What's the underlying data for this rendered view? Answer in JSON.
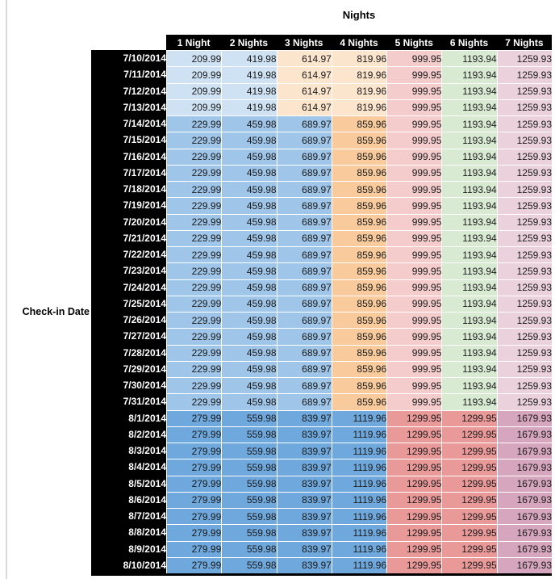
{
  "chart_data": {
    "type": "table",
    "title": "Nights",
    "row_axis_label": "Check-in Date",
    "columns": [
      "1 Night",
      "2 Nights",
      "3 Nights",
      "4 Nights",
      "5 Nights",
      "6 Nights",
      "7 Nights"
    ],
    "sections": [
      {
        "dates": [
          "7/10/2014",
          "7/11/2014",
          "7/12/2014",
          "7/13/2014"
        ],
        "row_values": [
          209.99,
          419.98,
          614.97,
          819.96,
          999.95,
          1193.94,
          1259.93
        ],
        "cell_colors": [
          "#cfe2f3",
          "#cfe2f3",
          "#fce5cd",
          "#fce5cd",
          "#f4cccc",
          "#d9ead3",
          "#ead1dc"
        ]
      },
      {
        "dates": [
          "7/14/2014",
          "7/15/2014",
          "7/16/2014",
          "7/17/2014",
          "7/18/2014",
          "7/19/2014",
          "7/20/2014",
          "7/21/2014",
          "7/22/2014",
          "7/23/2014",
          "7/24/2014",
          "7/25/2014",
          "7/26/2014",
          "7/27/2014",
          "7/28/2014",
          "7/29/2014",
          "7/30/2014",
          "7/31/2014"
        ],
        "row_values": [
          229.99,
          459.98,
          689.97,
          859.96,
          999.95,
          1193.94,
          1259.93
        ],
        "cell_colors": [
          "#9fc5e8",
          "#9fc5e8",
          "#9fc5e8",
          "#f9cb9c",
          "#f4cccc",
          "#d9ead3",
          "#ead1dc"
        ]
      },
      {
        "dates": [
          "8/1/2014",
          "8/2/2014",
          "8/3/2014",
          "8/4/2014",
          "8/5/2014",
          "8/6/2014",
          "8/7/2014",
          "8/8/2014",
          "8/9/2014",
          "8/10/2014"
        ],
        "row_values": [
          279.99,
          559.98,
          839.97,
          1119.96,
          1299.95,
          1299.95,
          1679.93
        ],
        "cell_colors": [
          "#6fa8dc",
          "#6fa8dc",
          "#6fa8dc",
          "#6fa8dc",
          "#ea9999",
          "#ea9999",
          "#d5a6bd"
        ]
      }
    ],
    "styles": {
      "header_bg": "#000000",
      "header_text": "#ffffff",
      "cell_border": "#ffffff",
      "value_text": "#1a1a1a"
    }
  }
}
